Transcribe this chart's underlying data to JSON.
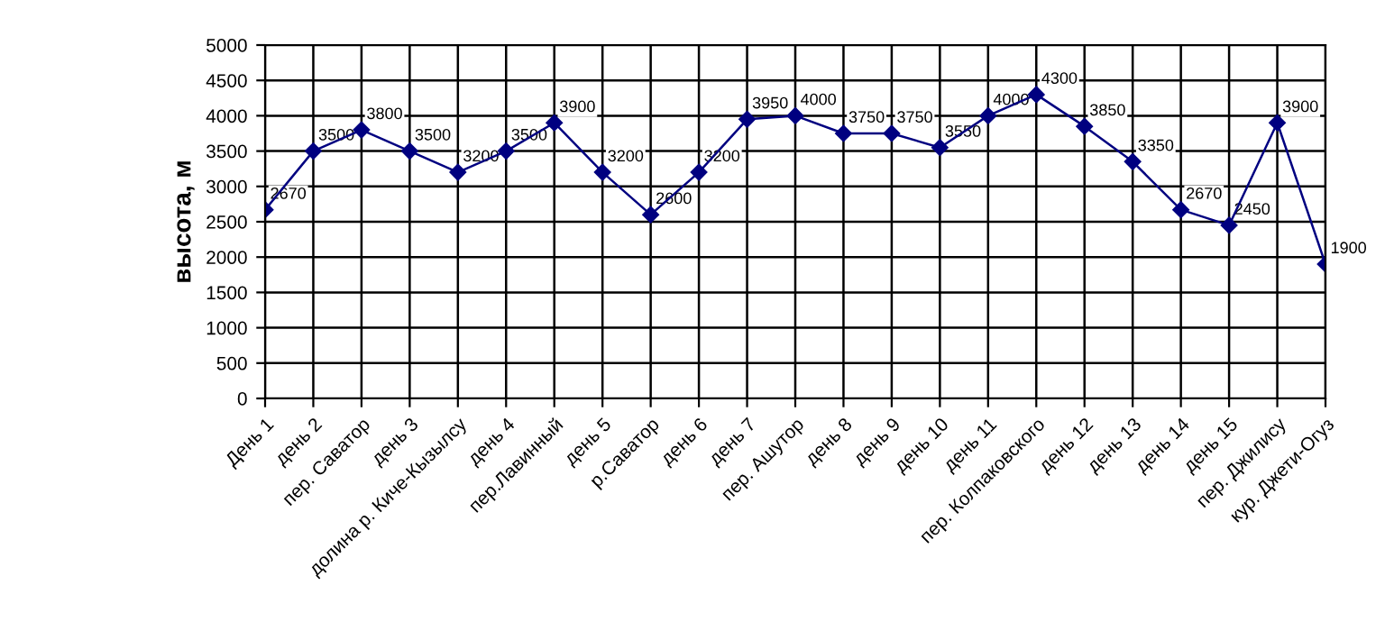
{
  "chart_data": {
    "type": "line",
    "ylabel": "высота, м",
    "categories": [
      "День 1",
      "день 2",
      "пер. Саватор",
      "день 3",
      "долина р. Киче-Кызылсу",
      "день 4",
      "пер.Лавинный",
      "день 5",
      "р.Саватор",
      "день 6",
      "день 7",
      "пер. Ашутор",
      "день 8",
      "день 9",
      "день 10",
      "день 11",
      "пер. Колпаковского",
      "день 12",
      "день 13",
      "день 14",
      "день 15",
      "пер. Джилису",
      "кур. Джети-Огуз"
    ],
    "series": [
      {
        "color": "#000080",
        "values": [
          2670,
          3500,
          3800,
          3500,
          3200,
          3500,
          3900,
          3200,
          2600,
          3200,
          3950,
          4000,
          3750,
          3750,
          3550,
          4000,
          4300,
          3850,
          3350,
          2670,
          2450,
          3900,
          1900
        ]
      }
    ],
    "ylim": [
      0,
      5000
    ],
    "yticks": [
      0,
      500,
      1000,
      1500,
      2000,
      2500,
      3000,
      3500,
      4000,
      4500,
      5000
    ],
    "grid": true,
    "legend": false,
    "marker": "diamond",
    "line_style": "solid",
    "data_labels": true
  }
}
